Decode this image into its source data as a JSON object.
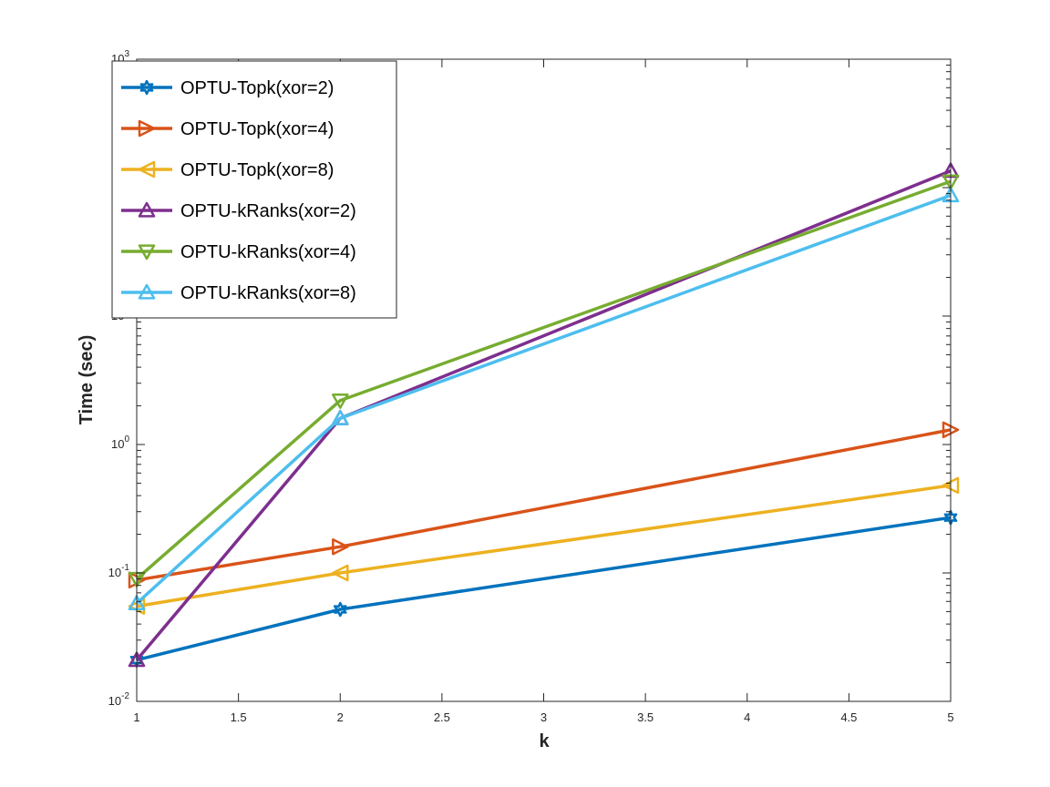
{
  "chart_data": {
    "type": "line",
    "title": "",
    "xlabel": "k",
    "ylabel": "Time (sec)",
    "x": [
      1,
      2,
      5
    ],
    "xlim": [
      1,
      5
    ],
    "ylim": [
      0.01,
      1000
    ],
    "yscale": "log",
    "grid": false,
    "legend_position": "top-left",
    "x_tick_labels": [
      "1",
      "1.5",
      "2",
      "2.5",
      "3",
      "3.5",
      "4",
      "4.5",
      "5"
    ],
    "y_tick_labels": [
      {
        "base": "10",
        "exp": "-2"
      },
      {
        "base": "10",
        "exp": "-1"
      },
      {
        "base": "10",
        "exp": "0"
      },
      {
        "base": "10",
        "exp": "1"
      },
      {
        "base": "10",
        "exp": "2"
      },
      {
        "base": "10",
        "exp": "3"
      }
    ],
    "series": [
      {
        "name": "OPTU-Topk(xor=2)",
        "color": "#0072BD",
        "marker": "hexagram",
        "values": [
          0.021,
          0.052,
          0.27
        ]
      },
      {
        "name": "OPTU-Topk(xor=4)",
        "color": "#D95319",
        "marker": "triangle-right",
        "values": [
          0.088,
          0.16,
          1.3
        ]
      },
      {
        "name": "OPTU-Topk(xor=8)",
        "color": "#EDB120",
        "marker": "triangle-left",
        "values": [
          0.055,
          0.1,
          0.48
        ]
      },
      {
        "name": "OPTU-kRanks(xor=2)",
        "color": "#7E2F8E",
        "marker": "triangle-up",
        "values": [
          0.021,
          1.6,
          135
        ]
      },
      {
        "name": "OPTU-kRanks(xor=4)",
        "color": "#77AC30",
        "marker": "triangle-down",
        "values": [
          0.09,
          2.2,
          112
        ]
      },
      {
        "name": "OPTU-kRanks(xor=8)",
        "color": "#4DBEEE",
        "marker": "triangle-up",
        "values": [
          0.058,
          1.6,
          87
        ]
      }
    ]
  }
}
